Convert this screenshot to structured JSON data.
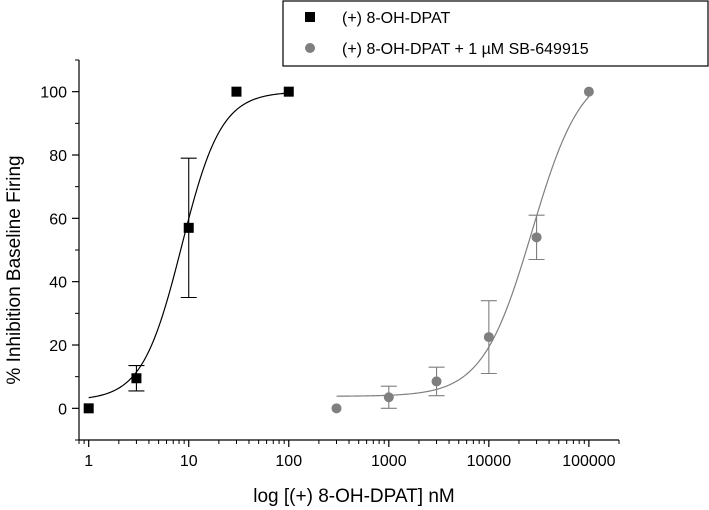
{
  "chart_data": {
    "type": "scatter",
    "xlabel": "log [(+) 8-OH-DPAT] nM",
    "ylabel": "% Inhibition Baseline Firing",
    "xscale": "log",
    "xlim": [
      0.8,
      200000
    ],
    "ylim": [
      -10,
      110
    ],
    "x_ticks": [
      1,
      10,
      100,
      1000,
      10000,
      100000
    ],
    "x_tick_labels": [
      "1",
      "10",
      "100",
      "1000",
      "10000",
      "100000"
    ],
    "y_ticks": [
      0,
      20,
      40,
      60,
      80,
      100
    ],
    "y_tick_labels": [
      "0",
      "20",
      "40",
      "60",
      "80",
      "100"
    ],
    "legend_position": "top-right",
    "series": [
      {
        "name": "(+) 8-OH-DPAT",
        "color": "#000000",
        "marker": "square",
        "x": [
          1,
          3,
          10,
          30,
          100
        ],
        "y": [
          0,
          9.5,
          57,
          100,
          100
        ],
        "err": [
          0,
          4,
          22,
          0,
          0
        ],
        "fit": {
          "bottom": 2.5,
          "top": 100,
          "ec50": 8.5,
          "hill": 2.2
        }
      },
      {
        "name": "(+) 8-OH-DPAT + 1 µM SB-649915",
        "color": "#7f7f7f",
        "marker": "circle",
        "x": [
          300,
          1000,
          3000,
          10000,
          30000,
          100000
        ],
        "y": [
          0,
          3.5,
          8.5,
          22.5,
          54,
          100
        ],
        "err": [
          0,
          3.5,
          4.5,
          11.5,
          7,
          0
        ],
        "fit": {
          "bottom": 3.8,
          "top": 108,
          "ec50": 27000,
          "hill": 1.75
        }
      }
    ]
  }
}
